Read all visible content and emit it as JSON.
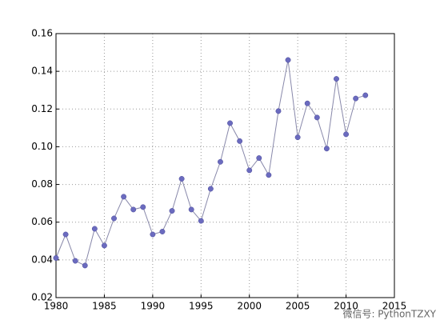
{
  "chart_data": {
    "type": "line",
    "x": [
      1980,
      1981,
      1982,
      1983,
      1984,
      1985,
      1986,
      1987,
      1988,
      1989,
      1990,
      1991,
      1992,
      1993,
      1994,
      1995,
      1996,
      1997,
      1998,
      1999,
      2000,
      2001,
      2002,
      2003,
      2004,
      2005,
      2006,
      2007,
      2008,
      2009,
      2010,
      2011,
      2012
    ],
    "series": [
      {
        "color": "#6b6bbf",
        "values": [
          0.041,
          0.0535,
          0.0395,
          0.037,
          0.0565,
          0.0476,
          0.062,
          0.0735,
          0.0667,
          0.068,
          0.0535,
          0.055,
          0.066,
          0.083,
          0.0667,
          0.0607,
          0.0777,
          0.092,
          0.1125,
          0.103,
          0.0875,
          0.094,
          0.085,
          0.1189,
          0.146,
          0.105,
          0.123,
          0.1155,
          0.099,
          0.136,
          0.1066,
          0.1256,
          0.1273
        ]
      }
    ],
    "xlim": [
      1980,
      2015
    ],
    "xticks": [
      1980,
      1985,
      1990,
      1995,
      2000,
      2005,
      2010,
      2015
    ],
    "ylim": [
      0.02,
      0.16
    ],
    "yticks": [
      0.02,
      0.04,
      0.06,
      0.08,
      {
        "value": 0.1,
        "label": "0.10"
      },
      0.12,
      0.14,
      0.16
    ],
    "grid": true,
    "annotation": "微信号: PythonTZXY"
  }
}
